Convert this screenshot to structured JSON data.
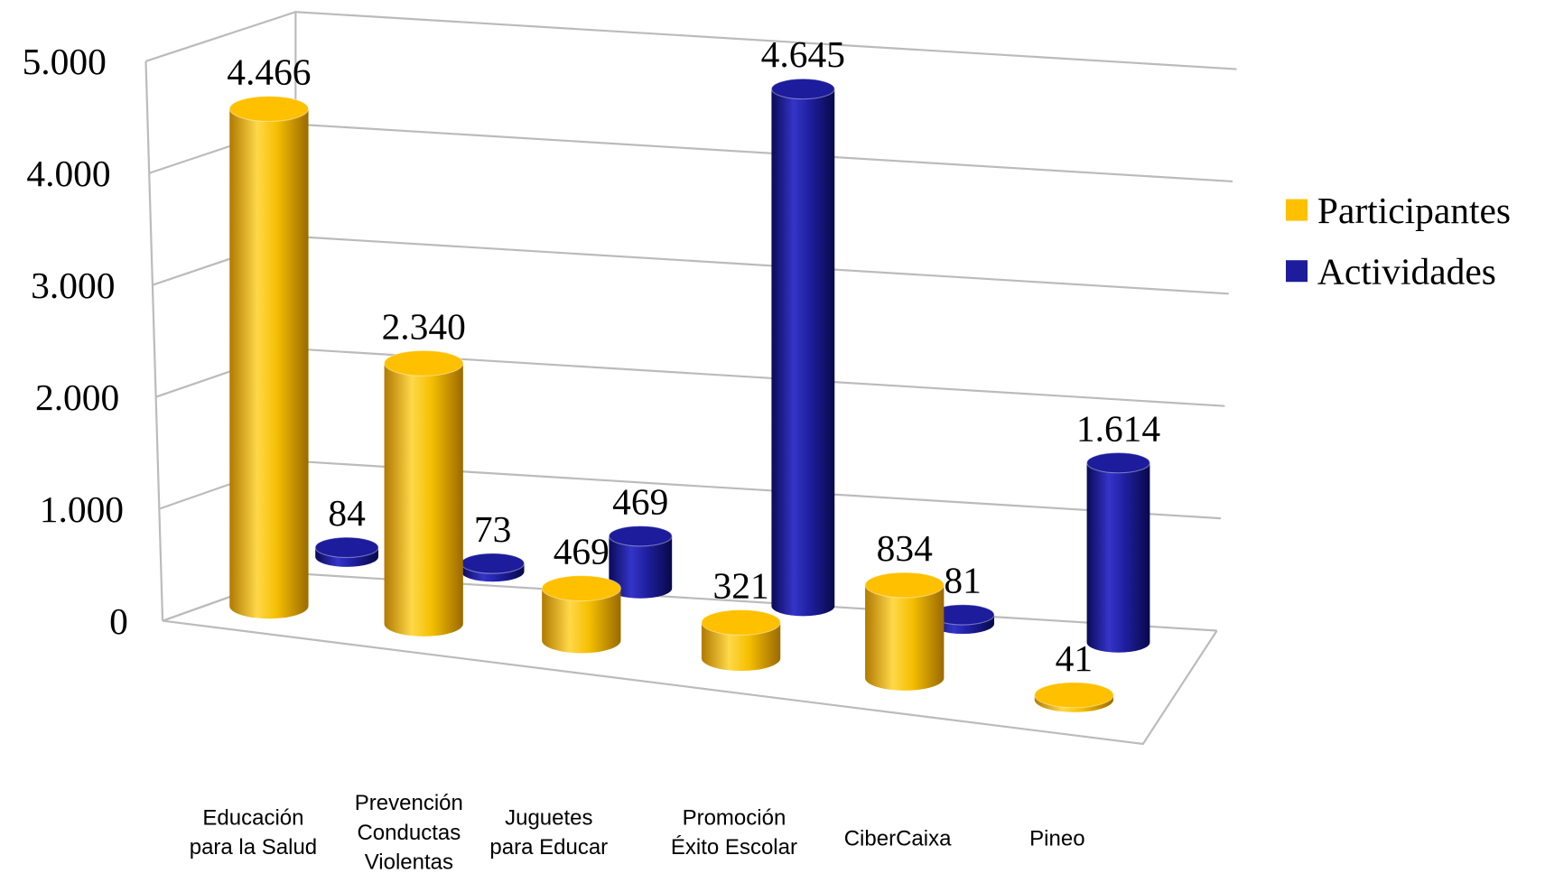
{
  "chart_data": {
    "type": "bar",
    "categories": [
      [
        "Educación",
        "para la Salud"
      ],
      [
        "Prevención",
        "Conductas",
        "Violentas"
      ],
      [
        "Juguetes",
        "para Educar"
      ],
      [
        "Promoción",
        "Éxito Escolar"
      ],
      [
        "CiberCaixa"
      ],
      [
        "Pineo"
      ]
    ],
    "series": [
      {
        "name": "Participantes",
        "color": "#ffc000",
        "values": [
          4466,
          2340,
          469,
          321,
          834,
          41
        ],
        "value_labels": [
          "4.466",
          "2.340",
          "469",
          "321",
          "834",
          "41"
        ]
      },
      {
        "name": "Actividades",
        "color": "#1c1c9c",
        "values": [
          84,
          73,
          469,
          4645,
          81,
          1614
        ],
        "value_labels": [
          "84",
          "73",
          "469",
          "4.645",
          "81",
          "1.614"
        ]
      }
    ],
    "ylim": [
      0,
      5000
    ],
    "yticks": [
      0,
      {
        "value": 1000,
        "label": "1.000"
      },
      {
        "value": 2000,
        "label": "2.000"
      },
      {
        "value": 3000,
        "label": "3.000"
      },
      {
        "value": 4000,
        "label": "4.000"
      },
      {
        "value": 5000,
        "label": "5.000"
      }
    ],
    "grid": true,
    "legend": "right"
  }
}
